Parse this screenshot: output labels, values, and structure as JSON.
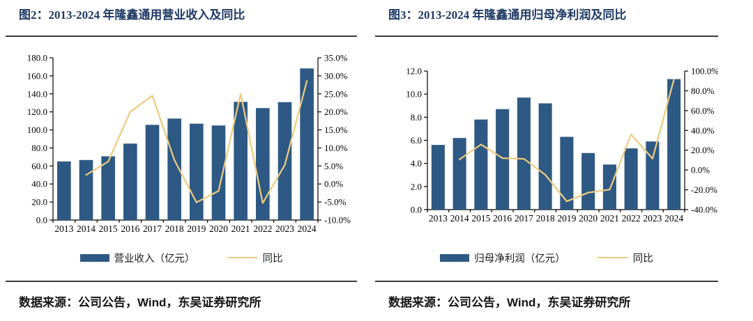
{
  "colors": {
    "bar": "#2E5984",
    "line": "#ECCB7E",
    "title": "#1F3864",
    "axis": "#000000",
    "divider": "#3B3B3B"
  },
  "chart_data": [
    {
      "type": "bar",
      "subtype": "bar+line combo, dual axis",
      "title": "图2：2013-2024 年隆鑫通用营业收入及同比",
      "categories": [
        "2013",
        "2014",
        "2015",
        "2016",
        "2017",
        "2018",
        "2019",
        "2020",
        "2021",
        "2022",
        "2023",
        "2024"
      ],
      "series": [
        {
          "name": "营业收入（亿元）",
          "type": "bar",
          "axis": "left",
          "values": [
            65.0,
            66.6,
            70.7,
            84.8,
            105.6,
            112.6,
            106.9,
            104.9,
            131.1,
            124.2,
            130.8,
            168.2
          ]
        },
        {
          "name": "同比",
          "type": "line",
          "axis": "right",
          "values": [
            null,
            2.5,
            6.2,
            20.0,
            24.5,
            6.6,
            -5.1,
            -1.9,
            25.0,
            -5.3,
            5.3,
            28.6
          ]
        }
      ],
      "left_axis": {
        "min": 0,
        "max": 180,
        "step": 20,
        "format": "number"
      },
      "right_axis": {
        "min": -10,
        "max": 35,
        "step": 5,
        "format": "percent"
      },
      "legend_position": "bottom",
      "grid": false,
      "source": "数据来源：公司公告，Wind，东吴证券研究所"
    },
    {
      "type": "bar",
      "subtype": "bar+line combo, dual axis",
      "title": "图3：2013-2024 年隆鑫通用归母净利润及同比",
      "categories": [
        "2013",
        "2014",
        "2015",
        "2016",
        "2017",
        "2018",
        "2019",
        "2020",
        "2021",
        "2022",
        "2023",
        "2024"
      ],
      "series": [
        {
          "name": "归母净利润（亿元）",
          "type": "bar",
          "axis": "left",
          "values": [
            5.6,
            6.2,
            7.8,
            8.7,
            9.7,
            9.2,
            6.3,
            4.9,
            3.9,
            5.3,
            5.9,
            11.3
          ]
        },
        {
          "name": "同比",
          "type": "line",
          "axis": "right",
          "values": [
            null,
            10.7,
            25.8,
            12.0,
            11.3,
            -4.8,
            -31.7,
            -22.8,
            -19.8,
            35.9,
            11.5,
            91.5
          ]
        }
      ],
      "left_axis": {
        "min": 0,
        "max": 12,
        "step": 2,
        "format": "number"
      },
      "right_axis": {
        "min": -40,
        "max": 100,
        "step": 20,
        "format": "percent"
      },
      "legend_position": "bottom",
      "grid": false,
      "source": "数据来源：公司公告，Wind，东吴证券研究所"
    }
  ]
}
